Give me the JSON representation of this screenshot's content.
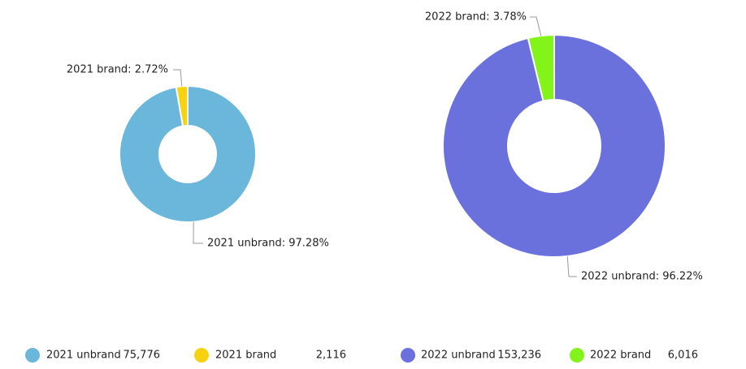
{
  "chart_data": [
    {
      "type": "donut",
      "categories": [
        "2021 unbrand",
        "2021 brand"
      ],
      "values": [
        75776,
        2116
      ],
      "value_labels": [
        "75,776",
        "2,116"
      ],
      "data_labels": [
        "2021 unbrand: 97.28%",
        "2021 brand: 2.72%"
      ],
      "colors": [
        "#6bb7dc",
        "#f6d20f"
      ]
    },
    {
      "type": "donut",
      "categories": [
        "2022 unbrand",
        "2022 brand"
      ],
      "values": [
        153236,
        6016
      ],
      "value_labels": [
        "153,236",
        "6,016"
      ],
      "data_labels": [
        "2022 unbrand: 96.22%",
        "2022 brand: 3.78%"
      ],
      "colors": [
        "#6a70dc",
        "#82f41a"
      ]
    }
  ]
}
